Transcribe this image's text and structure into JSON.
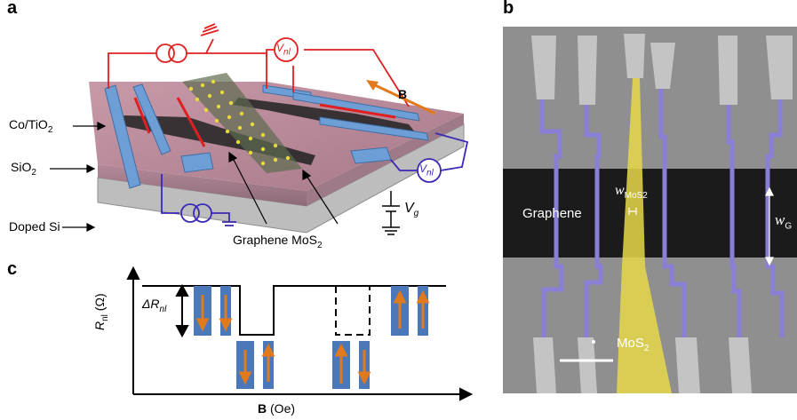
{
  "panels": {
    "a": {
      "letter": "a",
      "labels": {
        "co_tio2": "Co/TiO",
        "co_tio2_sub": "2",
        "sio2": "SiO",
        "sio2_sub": "2",
        "doped_si": "Doped Si",
        "graphene_mos2": "Graphene MoS",
        "graphene_mos2_sub": "2",
        "field": "B",
        "vnl": "V",
        "vnl_sub": "nl",
        "vg": "V",
        "vg_sub": "g"
      },
      "colors": {
        "circuit_red": "#e02020",
        "circuit_blue": "#3a2ab5",
        "arrow_orange": "#e07a1c"
      }
    },
    "b": {
      "letter": "b",
      "labels": {
        "graphene": "Graphene",
        "w_mos2": "w",
        "w_mos2_sub": "MoS2",
        "w_g": "w",
        "w_g_sub": "G",
        "mos2": "MoS",
        "mos2_sub": "2"
      },
      "colors": {
        "mos2": "#e6d84a",
        "electrodes": "#8a7fd6",
        "graphene": "#1a1a1a"
      }
    },
    "c": {
      "letter": "c",
      "labels": {
        "ylabel": "R",
        "ylabel_sub": "nl",
        "ylabel_unit": " (Ω)",
        "xlabel": "B",
        "xlabel_unit": " (Oe)",
        "delta": "ΔR",
        "delta_sub": "nl"
      },
      "colors": {
        "magnet": "#4a78b8",
        "magnet_arrow": "#e07a1c"
      }
    }
  }
}
